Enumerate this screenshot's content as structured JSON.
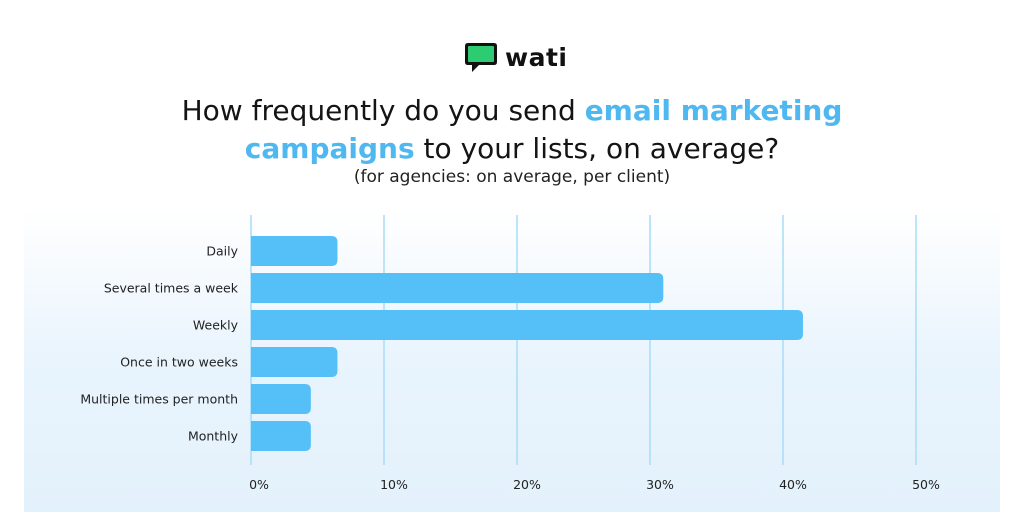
{
  "brand": {
    "name": "wati",
    "logo_color": "#2ecc71"
  },
  "title": {
    "part1": "How frequently do you send ",
    "highlight1": "email marketing",
    "highlight2": "campaigns",
    "part2": " to your lists, on average?"
  },
  "subtitle": "(for agencies: on average, per client)",
  "colors": {
    "bar": "#55bff7",
    "grid": "#a9dcf6",
    "highlight": "#4fb8f0"
  },
  "chart_data": {
    "type": "bar",
    "orientation": "horizontal",
    "categories": [
      "Daily",
      "Several times a week",
      "Weekly",
      "Once in two weeks",
      "Multiple times per month",
      "Monthly"
    ],
    "values": [
      6.5,
      31,
      41.5,
      6.5,
      4.5,
      4.5
    ],
    "xlim": [
      0,
      50
    ],
    "ticks": [
      "0%",
      "10%",
      "20%",
      "30%",
      "40%",
      "50%"
    ],
    "grid": true
  }
}
